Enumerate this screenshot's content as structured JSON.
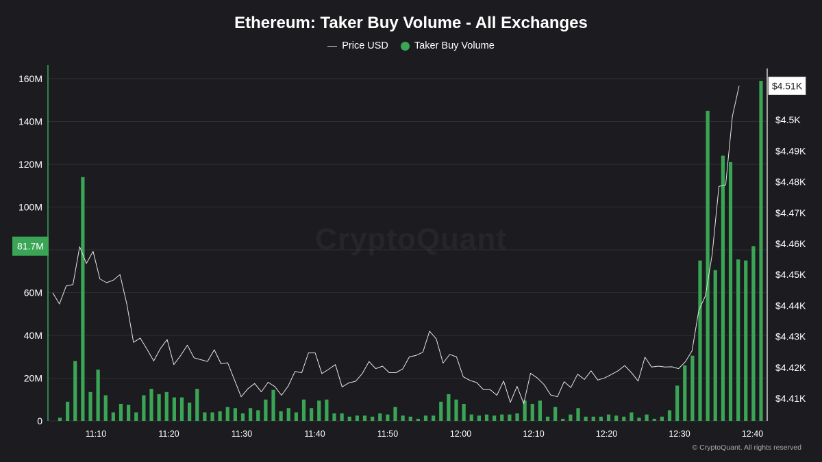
{
  "chart_data": {
    "type": "bar+line",
    "title": "Ethereum: Taker Buy Volume - All Exchanges",
    "legend_position": "top-center",
    "grid": true,
    "x_ticks": [
      "11:10",
      "11:20",
      "11:30",
      "11:40",
      "11:50",
      "12:00",
      "12:10",
      "12:20",
      "12:30",
      "12:40"
    ],
    "y_left": {
      "ticks": [
        "0",
        "20M",
        "40M",
        "60M",
        "80M",
        "100M",
        "120M",
        "140M",
        "160M"
      ],
      "range": [
        0,
        160
      ],
      "unit": "M",
      "crosshair_label": "81.7M"
    },
    "y_right": {
      "ticks": [
        "$4.41K",
        "$4.42K",
        "$4.43K",
        "$4.44K",
        "$4.45K",
        "$4.46K",
        "$4.47K",
        "$4.48K",
        "$4.49K",
        "$4.5K",
        "$4.51K"
      ],
      "range": [
        4.4035,
        4.5135
      ],
      "unit": "K USD",
      "last_value_label": "$4.51K"
    },
    "series": [
      {
        "name": "Taker Buy Volume",
        "type": "bar",
        "axis": "left",
        "color": "#3aa655",
        "values": [
          1.5,
          9,
          28,
          114,
          13.5,
          24,
          12,
          4,
          8,
          7.5,
          4,
          12,
          15,
          12.5,
          13.5,
          11,
          11,
          8.5,
          15,
          4,
          4,
          4.5,
          6.5,
          6,
          3.5,
          6,
          5,
          10,
          14.5,
          4.5,
          6,
          4,
          10,
          6,
          9.5,
          10,
          3.5,
          3.5,
          2,
          2.5,
          2.5,
          2,
          3.5,
          3,
          6.5,
          2.5,
          2,
          1,
          2.5,
          2.5,
          9,
          12.5,
          10,
          8,
          3,
          2.5,
          3,
          2.5,
          3,
          3,
          3.5,
          9.5,
          8,
          9.5,
          2,
          6.5,
          1,
          3,
          6,
          2,
          2,
          2,
          3,
          2.5,
          2,
          4,
          1.5,
          3,
          1,
          2,
          5,
          16.5,
          26,
          30.5,
          75,
          145,
          70.5,
          124,
          121,
          75.5,
          75,
          81.7,
          159
        ]
      },
      {
        "name": "Price USD",
        "type": "line",
        "axis": "right",
        "color": "#e6e6e6",
        "values": [
          4.4441,
          4.4405,
          4.4463,
          4.4468,
          4.459,
          4.4536,
          4.4575,
          4.4486,
          4.4474,
          4.4482,
          4.45,
          4.4405,
          4.4281,
          4.4295,
          4.4259,
          4.4221,
          4.4261,
          4.429,
          4.4209,
          4.4238,
          4.4272,
          4.4231,
          4.4225,
          4.4219,
          4.4257,
          4.4212,
          4.4215,
          4.416,
          4.4105,
          4.4131,
          4.4148,
          4.4121,
          4.4152,
          4.4138,
          4.411,
          4.414,
          4.4187,
          4.4183,
          4.4247,
          4.4247,
          4.418,
          4.4194,
          4.4209,
          4.4137,
          4.415,
          4.4155,
          4.418,
          4.4219,
          4.4196,
          4.4204,
          4.4183,
          4.4183,
          4.4195,
          4.4234,
          4.4239,
          4.4249,
          4.4317,
          4.4292,
          4.4214,
          4.4242,
          4.4234,
          4.417,
          4.4158,
          4.4151,
          4.4128,
          4.4128,
          4.411,
          4.4156,
          4.4087,
          4.4139,
          4.4083,
          4.4181,
          4.4166,
          4.4145,
          4.4111,
          4.4105,
          4.4154,
          4.4135,
          4.4178,
          4.4161,
          4.4189,
          4.4159,
          4.4166,
          4.4177,
          4.4189,
          4.4206,
          4.4183,
          4.4156,
          4.4233,
          4.4201,
          4.4204,
          4.4201,
          4.4202,
          4.4196,
          4.4218,
          4.4253,
          4.4384,
          4.4432,
          4.4566,
          4.4785,
          4.479,
          4.5012,
          4.511
        ]
      }
    ]
  },
  "watermark": "CryptoQuant",
  "copyright": "© CryptoQuant. All rights reserved",
  "colors": {
    "background": "#1c1c20",
    "volume": "#3aa655",
    "price": "#e6e6e6",
    "grid": "#2e2e33"
  }
}
